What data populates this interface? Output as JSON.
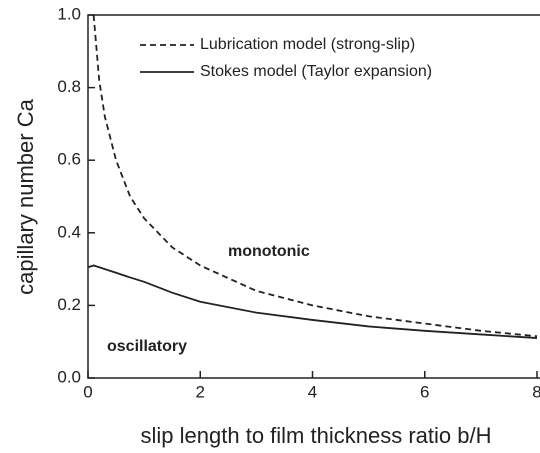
{
  "chart_data": {
    "type": "line",
    "xlabel": "slip length to film thickness ratio b/H",
    "ylabel": "capillary number Ca",
    "x": [
      0,
      0.1,
      0.2,
      0.3,
      0.5,
      0.75,
      1,
      1.5,
      2,
      3,
      4,
      5,
      6,
      7,
      8
    ],
    "series": [
      {
        "name": "Lubrication model (strong-slip)",
        "color": "#222222",
        "dash": "dashed",
        "values": [
          null,
          1.0,
          0.82,
          0.72,
          0.6,
          0.5,
          0.44,
          0.36,
          0.31,
          0.24,
          0.2,
          0.17,
          0.15,
          0.13,
          0.115
        ]
      },
      {
        "name": "Stokes model (Taylor expansion)",
        "color": "#222222",
        "dash": "solid",
        "values": [
          0.305,
          0.31,
          0.305,
          0.3,
          0.29,
          0.277,
          0.265,
          0.235,
          0.21,
          0.18,
          0.16,
          0.142,
          0.13,
          0.12,
          0.11
        ]
      }
    ],
    "annotations": [
      "monotonic",
      "oscillatory"
    ],
    "xlim": [
      0,
      8
    ],
    "xticks": [
      0,
      2,
      4,
      6,
      8
    ],
    "ylim": [
      0,
      1
    ],
    "yticks": [
      {
        "value": 0,
        "label": "0.0"
      },
      0.2,
      0.4,
      0.6,
      0.8,
      {
        "value": 1,
        "label": "1.0"
      }
    ],
    "legend": "upper right",
    "grid": false
  }
}
